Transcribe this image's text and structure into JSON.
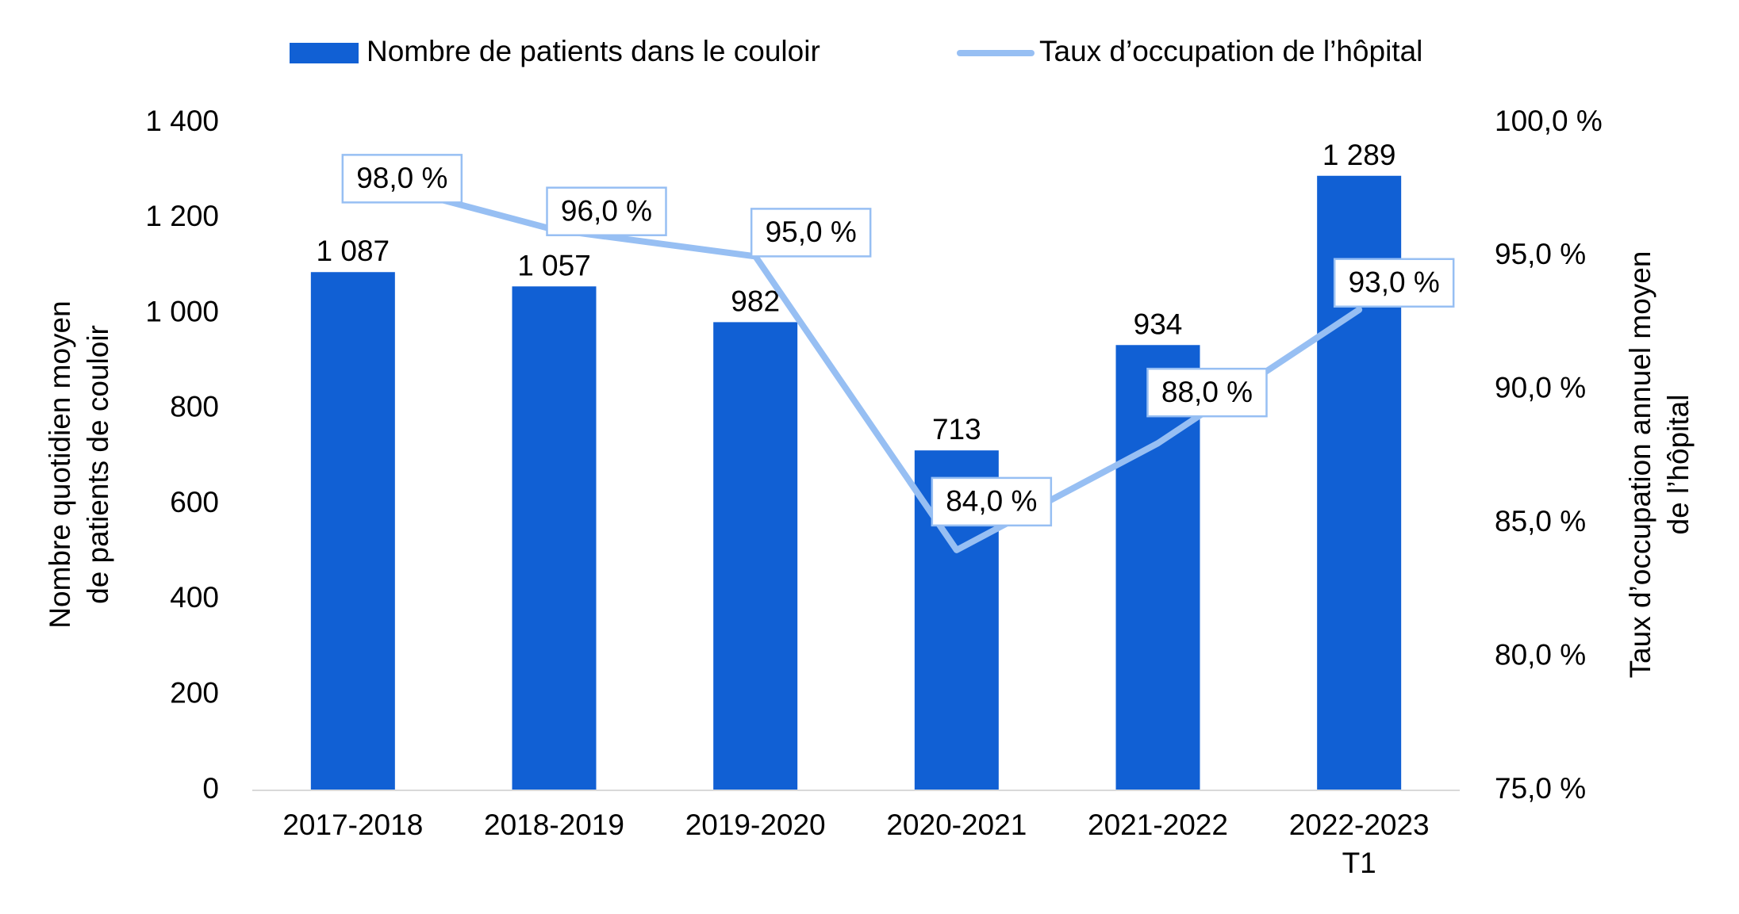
{
  "chart_data": {
    "type": "bar",
    "categories": [
      [
        "2017-2018"
      ],
      [
        "2018-2019"
      ],
      [
        "2019-2020"
      ],
      [
        "2020-2021"
      ],
      [
        "2021-2022"
      ],
      [
        "2022-2023",
        "T1"
      ]
    ],
    "series": [
      {
        "name": "Nombre de patients dans le couloir",
        "type": "bar",
        "axis": "left",
        "color": "#1160d4",
        "values": [
          1087,
          1057,
          982,
          713,
          934,
          1289
        ],
        "labels": [
          "1 087",
          "1 057",
          "982",
          "713",
          "934",
          "1 289"
        ]
      },
      {
        "name": "Taux d’occupation de l’hôpital",
        "type": "line",
        "axis": "right",
        "color": "#97bff3",
        "values": [
          98.0,
          96.0,
          95.0,
          84.0,
          88.0,
          93.0
        ],
        "labels": [
          "98,0 %",
          "96,0 %",
          "95,0 %",
          "84,0 %",
          "88,0 %",
          "93,0 %"
        ]
      }
    ],
    "y_left": {
      "label_lines": [
        "Nombre quotidien moyen",
        "de patients de couloir"
      ],
      "range": [
        0,
        1400
      ],
      "ticks": [
        0,
        200,
        400,
        600,
        800,
        1000,
        1200,
        1400
      ],
      "tick_labels": [
        "0",
        "200",
        "400",
        "600",
        "800",
        "1 000",
        "1 200",
        "1 400"
      ]
    },
    "y_right": {
      "label_lines": [
        "Taux d’occupation annuel moyen",
        "de l’hôpital"
      ],
      "range": [
        75,
        100
      ],
      "ticks": [
        75,
        80,
        85,
        90,
        95,
        100
      ],
      "tick_labels": [
        "75,0 %",
        "80,0 %",
        "85,0 %",
        "90,0 %",
        "95,0 %",
        "100,0 %"
      ]
    },
    "grid": false,
    "legend": "top-center"
  }
}
